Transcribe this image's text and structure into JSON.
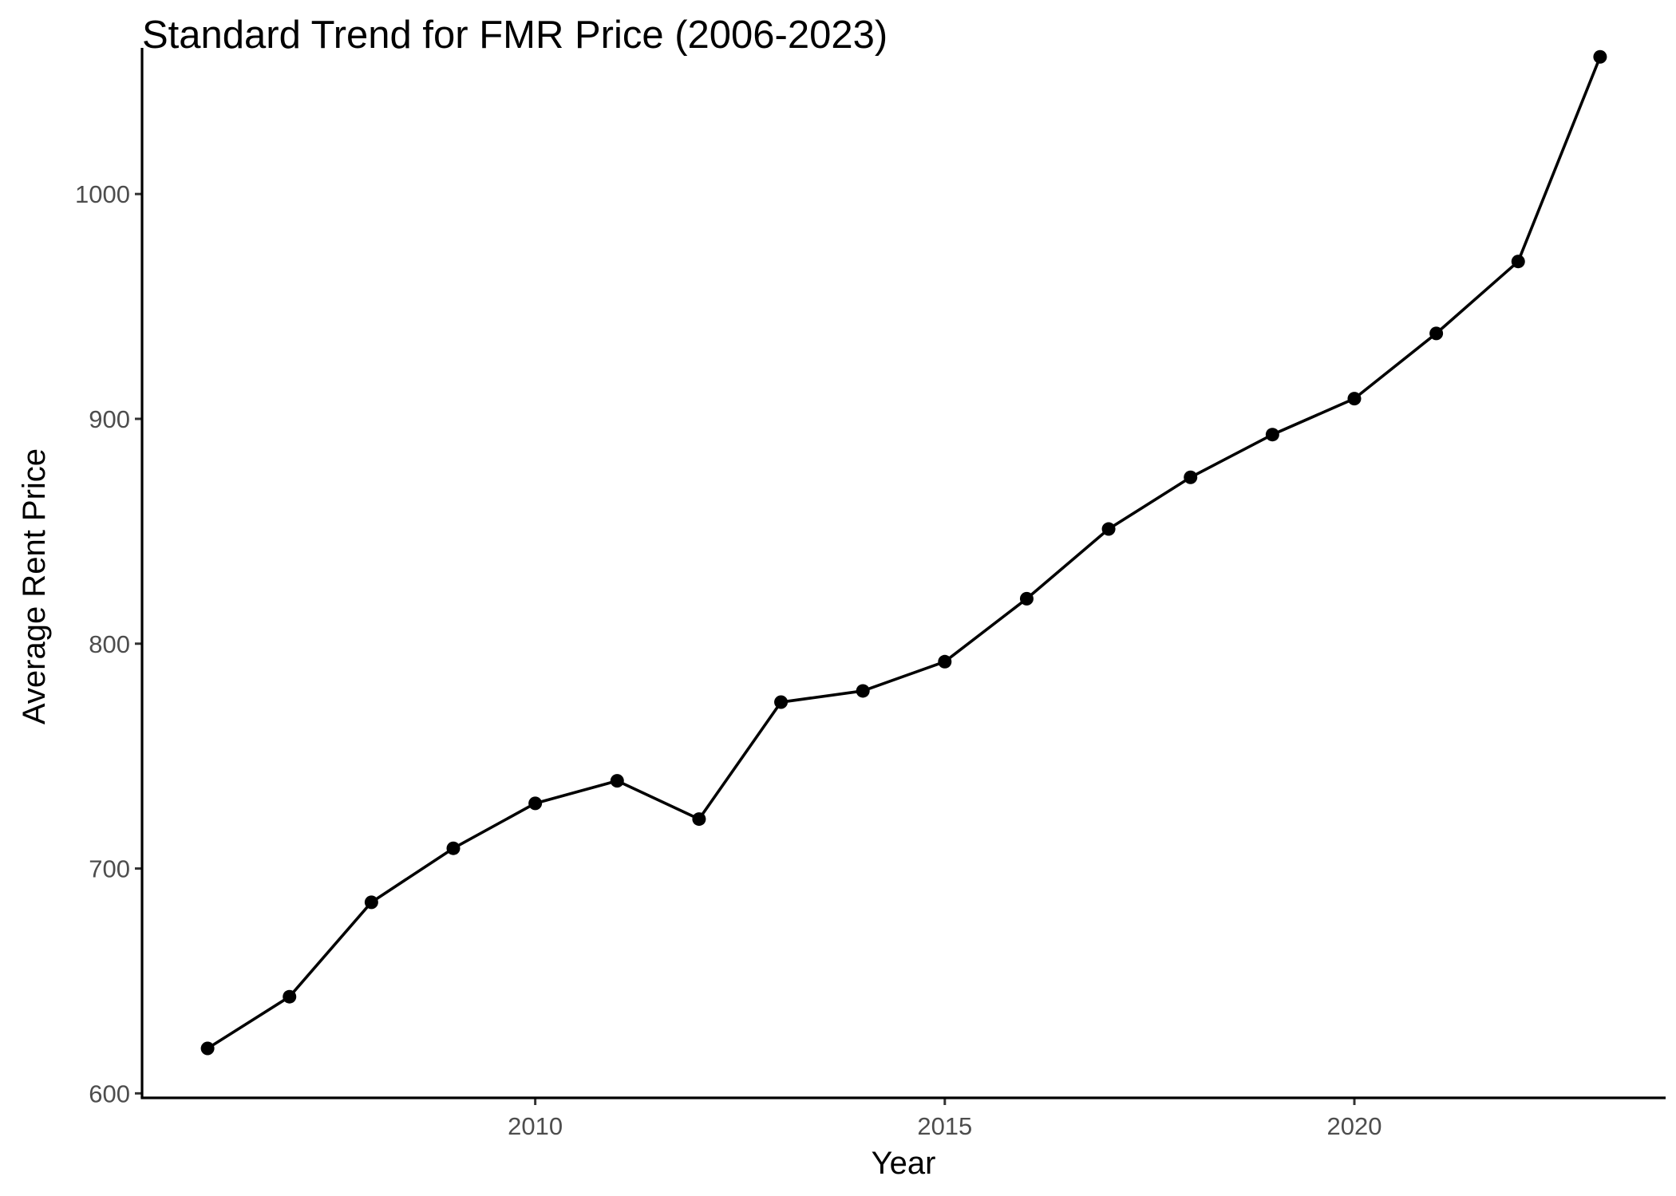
{
  "chart_data": {
    "type": "line",
    "title": "Standard Trend for FMR Price (2006-2023)",
    "xlabel": "Year",
    "ylabel": "Average Rent Price",
    "xlim": [
      2005.2,
      2023.8
    ],
    "ylim": [
      598,
      1065
    ],
    "x_ticks": [
      2010,
      2015,
      2020
    ],
    "y_ticks": [
      600,
      700,
      800,
      900,
      1000
    ],
    "x_tick_labels": [
      "2010",
      "2015",
      "2020"
    ],
    "y_tick_labels": [
      "600",
      "700",
      "800",
      "900",
      "1000"
    ],
    "grid": false,
    "legend": "none",
    "colors": {
      "line": "#000000",
      "points": "#000000",
      "tick_label": "#4d4d4d"
    },
    "x": [
      2006,
      2007,
      2008,
      2009,
      2010,
      2011,
      2012,
      2013,
      2014,
      2015,
      2016,
      2017,
      2018,
      2019,
      2020,
      2021,
      2022,
      2023
    ],
    "series": [
      {
        "values": [
          620,
          643,
          685,
          709,
          729,
          739,
          722,
          774,
          779,
          792,
          820,
          851,
          874,
          893,
          909,
          938,
          970,
          1061
        ]
      }
    ]
  }
}
